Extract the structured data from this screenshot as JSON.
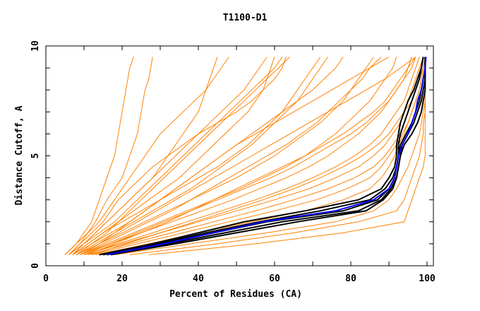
{
  "chart_data": {
    "type": "line",
    "title": "T1100-D1",
    "xlabel": "Percent of Residues (CA)",
    "ylabel": "Distance Cutoff, A",
    "xlim": [
      0,
      101
    ],
    "ylim": [
      0,
      10
    ],
    "x_ticks": [
      "0",
      "20",
      "40",
      "60",
      "80",
      "100"
    ],
    "y_ticks": [
      "0",
      "5",
      "10"
    ],
    "grid": false,
    "colors": {
      "other_models": "#ff8000",
      "top_models": "#000000",
      "highlight": "#0000ff"
    },
    "y_cutoffs": [
      0.5,
      1,
      1.5,
      2,
      2.5,
      3,
      3.5,
      4,
      4.5,
      5,
      5.5,
      6,
      6.5,
      7,
      7.5,
      8,
      8.5,
      9,
      9.5
    ],
    "series_other": [
      [
        5,
        8,
        10,
        12,
        13,
        14,
        15,
        16,
        17,
        18,
        18.5,
        19,
        19.5,
        20,
        20.5,
        21,
        21.5,
        22,
        23
      ],
      [
        6,
        9,
        11,
        13,
        14.5,
        16,
        18,
        20,
        21,
        22,
        23,
        24,
        24.5,
        25,
        25.5,
        26,
        27,
        27.5,
        28
      ],
      [
        7,
        10,
        13,
        16,
        19,
        22,
        25,
        28,
        30,
        32,
        34,
        36,
        38,
        40,
        41,
        42,
        43,
        44,
        45
      ],
      [
        7,
        11,
        15,
        19,
        23,
        27,
        31,
        35,
        38,
        41,
        44,
        47,
        50,
        53,
        55,
        57,
        58,
        59,
        60
      ],
      [
        8,
        13,
        18,
        23,
        28,
        33,
        38,
        42,
        46,
        50,
        54,
        57,
        60,
        63,
        66,
        68,
        70,
        72,
        74
      ],
      [
        8,
        14,
        20,
        26,
        32,
        38,
        44,
        50,
        55,
        60,
        64,
        68,
        72,
        75,
        78,
        80,
        82,
        84,
        86
      ],
      [
        9,
        16,
        23,
        30,
        37,
        44,
        51,
        57,
        63,
        68,
        72,
        76,
        79,
        82,
        85,
        87,
        89,
        91,
        92
      ],
      [
        9,
        17,
        25,
        33,
        41,
        49,
        56,
        63,
        69,
        74,
        78,
        82,
        85,
        88,
        90,
        92,
        94,
        95,
        96
      ],
      [
        10,
        19,
        28,
        37,
        46,
        55,
        63,
        70,
        76,
        81,
        85,
        88,
        90,
        92,
        94,
        95,
        96,
        97,
        98
      ],
      [
        10,
        20,
        30,
        40,
        50,
        60,
        69,
        76,
        82,
        86,
        89,
        91,
        93,
        94,
        95,
        96,
        97,
        98,
        99
      ],
      [
        11,
        22,
        33,
        44,
        55,
        65,
        74,
        81,
        86,
        89,
        91,
        93,
        94,
        95,
        96,
        97,
        98,
        98.5,
        99
      ],
      [
        12,
        24,
        36,
        48,
        60,
        71,
        79,
        85,
        88,
        90,
        92,
        93.5,
        95,
        96,
        97,
        98,
        98.5,
        99,
        99.5
      ],
      [
        13,
        27,
        40,
        54,
        68,
        78,
        85,
        88,
        90,
        91.5,
        92.5,
        94,
        95,
        96,
        97,
        98,
        98.5,
        99,
        99.5
      ],
      [
        18,
        38,
        58,
        76,
        86,
        90,
        92,
        93.5,
        95,
        96,
        97,
        98,
        98.5,
        99,
        99.5,
        99.5,
        99.5,
        99.5,
        99.5
      ],
      [
        22,
        45,
        65,
        82,
        92,
        94,
        95,
        96,
        97,
        98,
        98.5,
        99,
        99,
        99.5,
        99.5,
        99.5,
        99.5,
        99.5,
        99.5
      ],
      [
        27,
        55,
        78,
        94,
        95,
        96,
        97,
        98,
        99,
        99.5,
        99.5,
        99.5,
        99.5,
        99.5,
        99.5,
        99.5,
        99.5,
        99.5,
        99.5
      ],
      [
        6,
        10,
        14,
        18,
        21,
        24,
        27,
        30,
        33,
        36,
        39,
        42,
        45,
        48,
        51,
        54,
        57,
        60,
        62
      ],
      [
        7,
        12,
        17,
        22,
        26,
        30,
        34,
        38,
        42,
        46,
        50,
        54,
        58,
        62,
        66,
        70,
        73,
        76,
        78
      ],
      [
        9,
        15,
        21,
        27,
        33,
        38,
        43,
        48,
        53,
        58,
        63,
        67,
        71,
        74,
        77,
        80,
        83,
        85,
        88
      ],
      [
        11,
        18,
        25,
        32,
        38,
        44,
        50,
        56,
        62,
        68,
        73,
        78,
        82,
        86,
        89,
        91,
        93,
        95,
        97
      ],
      [
        6,
        9,
        12,
        15,
        17,
        19,
        22,
        25,
        28,
        32,
        36,
        40,
        45,
        50,
        54,
        57,
        60,
        62,
        63
      ],
      [
        8,
        12,
        16,
        19,
        22,
        25,
        28,
        31,
        34,
        37,
        40,
        43,
        46,
        49,
        52,
        55,
        58,
        61,
        64
      ],
      [
        10,
        17,
        24,
        31,
        38,
        45,
        52,
        59,
        65,
        70,
        75,
        80,
        84,
        87,
        90,
        92,
        94,
        96,
        97
      ],
      [
        12,
        21,
        30,
        39,
        48,
        57,
        65,
        72,
        78,
        83,
        87,
        90,
        92,
        94,
        96,
        97,
        98,
        99,
        99.5
      ],
      [
        7,
        11,
        15,
        20,
        25,
        30,
        35,
        40,
        45,
        49,
        53,
        56,
        59,
        62,
        64,
        66,
        68,
        70,
        72
      ],
      [
        5,
        8,
        11,
        14,
        16,
        18,
        20,
        22,
        24,
        26,
        28,
        30,
        33,
        36,
        39,
        42,
        44,
        46,
        48
      ],
      [
        8,
        14,
        19,
        24,
        29,
        34,
        39,
        44,
        49,
        54,
        59,
        64,
        69,
        74,
        79,
        84,
        89,
        93,
        97
      ],
      [
        9,
        14,
        18,
        22,
        26,
        30,
        34,
        38,
        42,
        46,
        50,
        55,
        60,
        65,
        70,
        75,
        80,
        85,
        90
      ],
      [
        6,
        10,
        13,
        16,
        19,
        22,
        25,
        28,
        31,
        34,
        37,
        40,
        43,
        46,
        49,
        52,
        54,
        56,
        58
      ]
    ],
    "series_top": [
      [
        14,
        28,
        40,
        52,
        68,
        82,
        88,
        90,
        91.5,
        92,
        92,
        92.5,
        93,
        94,
        95,
        96.5,
        97.5,
        98.5,
        99
      ],
      [
        15,
        30,
        44,
        58,
        78,
        87,
        90,
        91.5,
        92,
        92.5,
        93,
        94.5,
        96,
        97,
        98,
        98.5,
        99,
        99.5,
        99.5
      ],
      [
        16,
        32,
        47,
        62,
        82,
        88,
        90.5,
        92,
        92.5,
        93,
        93.5,
        95,
        96.5,
        97.5,
        98.5,
        99,
        99.5,
        99.5,
        99.5
      ],
      [
        17,
        34,
        50,
        66,
        84,
        88.5,
        91,
        92,
        92.5,
        93,
        94,
        96,
        97.5,
        98.5,
        99,
        99.5,
        99.5,
        99.5,
        99.5
      ],
      [
        14,
        29,
        42,
        56,
        72,
        85,
        89,
        91,
        92,
        92.5,
        92.5,
        93,
        94,
        95,
        96,
        97,
        98,
        98.5,
        99
      ]
    ],
    "series_highlight": [
      16,
      31,
      44,
      57,
      76,
      86,
      90,
      91.5,
      92,
      92.5,
      93.5,
      95,
      96,
      97,
      97.5,
      98.5,
      99,
      99.5,
      99.7
    ]
  }
}
